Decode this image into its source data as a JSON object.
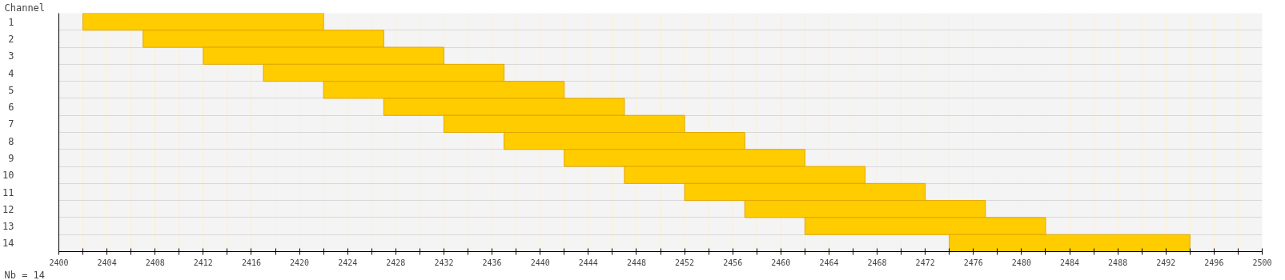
{
  "chart_data": {
    "type": "bar",
    "orientation": "horizontal",
    "ylabel": "Channel",
    "annotations": [
      "Nb = 14"
    ],
    "categories": [
      "1",
      "2",
      "3",
      "4",
      "5",
      "6",
      "7",
      "8",
      "9",
      "10",
      "11",
      "12",
      "13",
      "14"
    ],
    "base": [
      2402,
      2407,
      2412,
      2417,
      2422,
      2427,
      2432,
      2437,
      2442,
      2447,
      2452,
      2457,
      2462,
      2474
    ],
    "values": [
      20,
      20,
      20,
      20,
      20,
      20,
      20,
      20,
      20,
      20,
      20,
      20,
      20,
      20
    ],
    "color": "#ffcc00",
    "xlim": [
      2400,
      2500
    ],
    "xticks": [
      2400,
      {
        "value": 2402,
        "label": null
      },
      2404,
      {
        "value": 2406,
        "label": null
      },
      2408,
      {
        "value": 2410,
        "label": null
      },
      2412,
      {
        "value": 2414,
        "label": null
      },
      2416,
      {
        "value": 2418,
        "label": null
      },
      2420,
      {
        "value": 2422,
        "label": null
      },
      2424,
      {
        "value": 2426,
        "label": null
      },
      2428,
      {
        "value": 2430,
        "label": null
      },
      2432,
      {
        "value": 2434,
        "label": null
      },
      2436,
      {
        "value": 2438,
        "label": null
      },
      2440,
      {
        "value": 2442,
        "label": null
      },
      2444,
      {
        "value": 2446,
        "label": null
      },
      2448,
      {
        "value": 2450,
        "label": null
      },
      2452,
      {
        "value": 2454,
        "label": null
      },
      2456,
      {
        "value": 2458,
        "label": null
      },
      2460,
      {
        "value": 2462,
        "label": null
      },
      2464,
      {
        "value": 2466,
        "label": null
      },
      2468,
      {
        "value": 2470,
        "label": null
      },
      2472,
      {
        "value": 2474,
        "label": null
      },
      2476,
      {
        "value": 2478,
        "label": null
      },
      2480,
      {
        "value": 2482,
        "label": null
      },
      2484,
      {
        "value": 2486,
        "label": null
      },
      2488,
      {
        "value": 2490,
        "label": null
      },
      2492,
      {
        "value": 2494,
        "label": null
      },
      2496,
      {
        "value": 2498,
        "label": null
      },
      2500
    ],
    "grid": true
  }
}
